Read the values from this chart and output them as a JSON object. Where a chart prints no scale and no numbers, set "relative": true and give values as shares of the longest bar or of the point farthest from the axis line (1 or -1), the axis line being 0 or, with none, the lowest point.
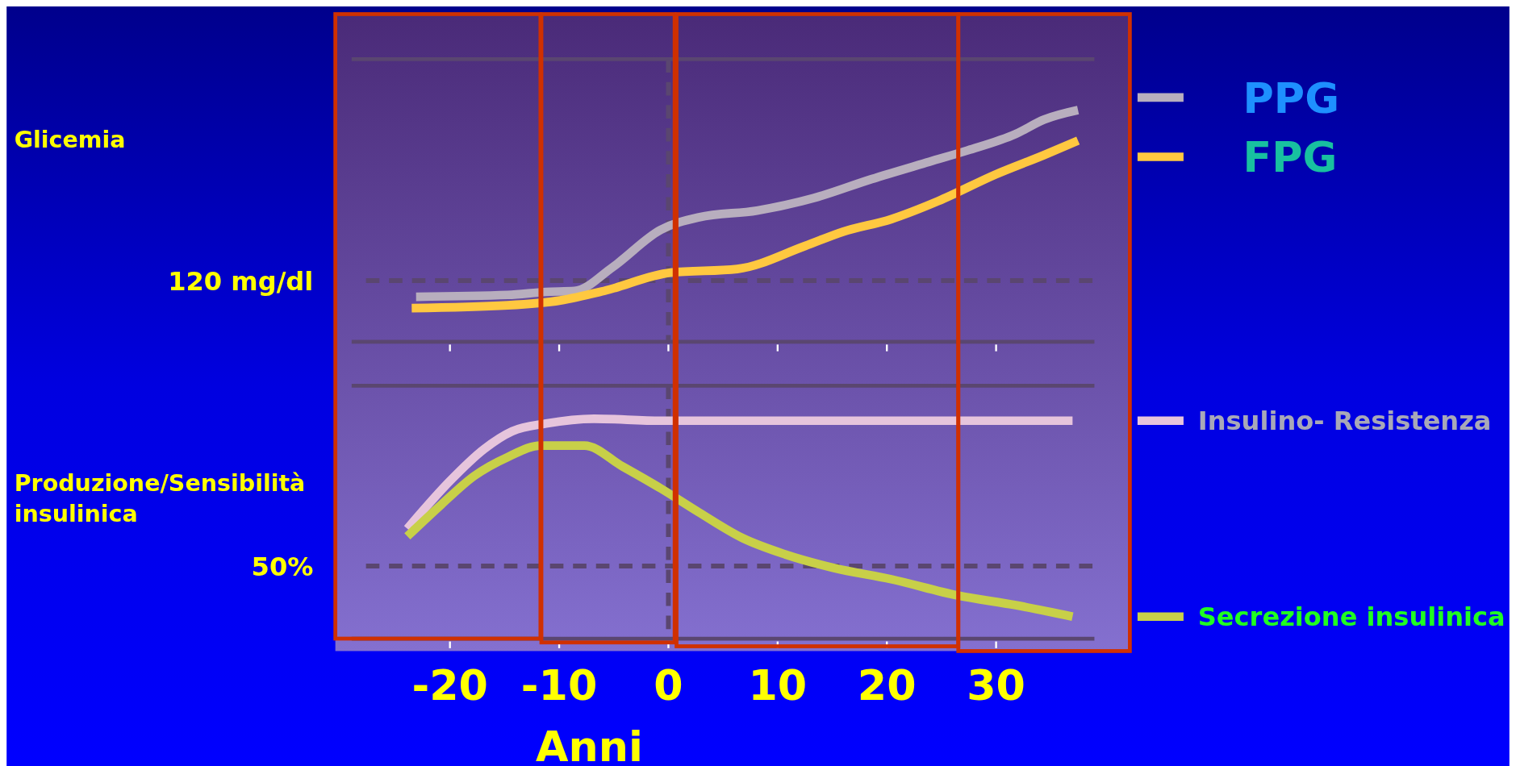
{
  "chart_data": [
    {
      "type": "line",
      "relative": true,
      "ylabel": "Glicemia",
      "xlim": [
        -29,
        39
      ],
      "xticks": [
        {
          "value": -20,
          "label": null
        },
        {
          "value": -10,
          "label": null
        },
        {
          "value": 0,
          "label": null
        },
        {
          "value": 10,
          "label": null
        },
        {
          "value": 20,
          "label": null
        },
        {
          "value": 30,
          "label": null
        }
      ],
      "tick_labels": false,
      "legend": "right",
      "ref_lines": [
        {
          "axis": "y",
          "value": 0.264,
          "label": "120 mg/dl",
          "line_style": "dashed"
        },
        {
          "axis": "x",
          "value": 0,
          "label": null,
          "line_style": "dashed"
        }
      ],
      "series": [
        {
          "name": "PPG",
          "color": "#b8aebe",
          "x": [
            -23.1,
            -14.7,
            -11.2,
            -8.6,
            -5.1,
            -0.7,
            2.8,
            8.1,
            13.3,
            18.6,
            23.9,
            27.4,
            31.8,
            34.4,
            37.5
          ],
          "values": [
            0.194,
            0.202,
            0.215,
            0.219,
            0.322,
            0.483,
            0.537,
            0.566,
            0.62,
            0.702,
            0.777,
            0.826,
            0.897,
            0.959,
            1
          ]
        },
        {
          "name": "FPG",
          "color": "#ffc840",
          "x": [
            -23.5,
            -14.7,
            -9.9,
            -5.9,
            0.2,
            6.3,
            12.5,
            16,
            20.4,
            24.7,
            30,
            34.4,
            37.5
          ],
          "values": [
            0.145,
            0.157,
            0.178,
            0.219,
            0.298,
            0.314,
            0.413,
            0.475,
            0.529,
            0.607,
            0.723,
            0.806,
            0.868
          ]
        }
      ]
    },
    {
      "type": "line",
      "relative": true,
      "ylabel": "Produzione/Sensibilità insulinica",
      "xlabel": "Anni",
      "xlim": [
        -29,
        39
      ],
      "xticks": [
        -20,
        -10,
        0,
        10,
        20,
        30
      ],
      "tick_labels": "x",
      "legend": "right",
      "annotations": [
        "50%"
      ],
      "ref_lines": [
        {
          "axis": "y",
          "value": 0.33,
          "label": null,
          "line_style": "dashed"
        },
        {
          "axis": "x",
          "value": 0,
          "label": null,
          "line_style": "dashed"
        }
      ],
      "series": [
        {
          "name": "Insulino- Resistenza",
          "color": "#e6c4dc",
          "x": [
            -23.9,
            -20,
            -16.9,
            -14.3,
            -11.2,
            -6.8,
            -0.7,
            37
          ],
          "values": [
            0.5,
            0.717,
            0.861,
            0.943,
            0.978,
            1,
            0.991,
            0.991
          ]
        },
        {
          "name": "Secrezione insulinica",
          "color": "#c8d048",
          "x": [
            -23.9,
            -20.8,
            -17.8,
            -14.7,
            -11.7,
            -7.7,
            -4.2,
            -0.7,
            2.8,
            6.8,
            10.7,
            15.1,
            20.4,
            26.5,
            31.8,
            37
          ],
          "values": [
            0.465,
            0.609,
            0.739,
            0.826,
            0.878,
            0.878,
            0.783,
            0.683,
            0.574,
            0.457,
            0.383,
            0.322,
            0.27,
            0.196,
            0.152,
            0.1
          ]
        }
      ]
    }
  ]
}
